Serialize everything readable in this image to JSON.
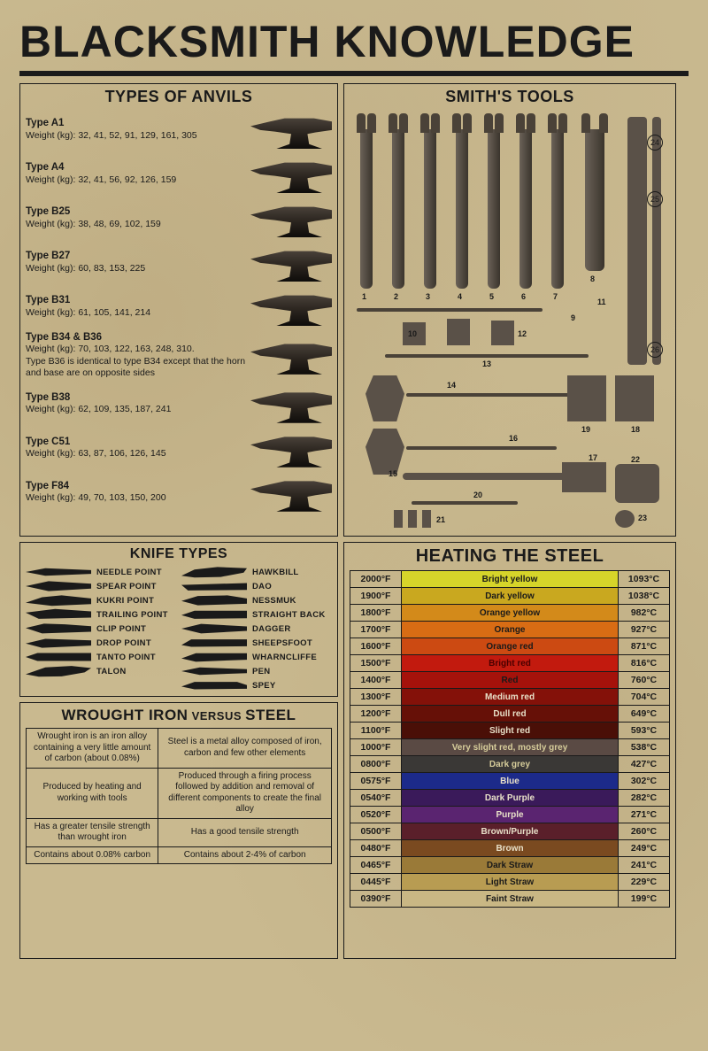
{
  "title": "BLACKSMITH KNOWLEDGE",
  "anvils": {
    "heading": "TYPES OF ANVILS",
    "items": [
      {
        "name": "Type A1",
        "weights": "Weight (kg): 32, 41, 52, 91, 129, 161, 305",
        "note": ""
      },
      {
        "name": "Type A4",
        "weights": "Weight (kg): 32, 41, 56, 92, 126, 159",
        "note": ""
      },
      {
        "name": "Type B25",
        "weights": "Weight (kg): 38, 48, 69, 102, 159",
        "note": ""
      },
      {
        "name": "Type B27",
        "weights": "Weight (kg): 60, 83, 153, 225",
        "note": ""
      },
      {
        "name": "Type B31",
        "weights": "Weight (kg): 61, 105, 141, 214",
        "note": ""
      },
      {
        "name": "Type B34 & B36",
        "weights": "Weight (kg): 70, 103, 122, 163, 248, 310.",
        "note": "Type B36 is identical to type B34 except that the horn and base are on opposite sides"
      },
      {
        "name": "Type B38",
        "weights": "Weight (kg): 62, 109, 135, 187, 241",
        "note": ""
      },
      {
        "name": "Type C51",
        "weights": "Weight (kg): 63, 87, 106, 126, 145",
        "note": ""
      },
      {
        "name": "Type F84",
        "weights": "Weight (kg): 49, 70, 103, 150, 200",
        "note": ""
      }
    ]
  },
  "tools": {
    "heading": "SMITH'S TOOLS",
    "numbers": [
      "1",
      "2",
      "3",
      "4",
      "5",
      "6",
      "7",
      "8",
      "9",
      "10",
      "11",
      "12",
      "13",
      "14",
      "15",
      "16",
      "17",
      "18",
      "19",
      "20",
      "21",
      "22",
      "23",
      "24",
      "25",
      "26"
    ]
  },
  "knives": {
    "heading": "KNIFE TYPES",
    "left": [
      {
        "label": "NEEDLE POINT",
        "clip": "polygon(0 50%, 30% 20%, 100% 35%, 100% 65%, 30% 80%)"
      },
      {
        "label": "SPEAR POINT",
        "clip": "polygon(0 50%, 35% 10%, 100% 30%, 100% 70%, 35% 90%)"
      },
      {
        "label": "KUKRI POINT",
        "clip": "polygon(0 70%, 25% 25%, 55% 10%, 100% 35%, 100% 80%, 40% 95%)"
      },
      {
        "label": "TRAILING POINT",
        "clip": "polygon(0 35%, 45% 5%, 100% 25%, 100% 75%, 20% 85%)"
      },
      {
        "label": "CLIP POINT",
        "clip": "polygon(0 45%, 28% 10%, 60% 15%, 100% 30%, 100% 75%, 25% 88%)"
      },
      {
        "label": "DROP POINT",
        "clip": "polygon(0 55%, 30% 18%, 100% 30%, 100% 72%, 25% 90%)"
      },
      {
        "label": "TANTO POINT",
        "clip": "polygon(0 50%, 18% 18%, 100% 18%, 100% 82%, 18% 82%)"
      },
      {
        "label": "TALON",
        "clip": "polygon(0 75%, 30% 20%, 70% 8%, 100% 25%, 90% 60%, 55% 92%, 20% 95%)"
      }
    ],
    "right": [
      {
        "label": "HAWKBILL",
        "clip": "polygon(0 80%, 20% 30%, 55% 10%, 100% 20%, 95% 55%, 60% 90%, 20% 95%)"
      },
      {
        "label": "DAO",
        "clip": "polygon(0 40%, 100% 25%, 100% 80%, 10% 85%)"
      },
      {
        "label": "NESSMUK",
        "clip": "polygon(0 55%, 25% 15%, 70% 10%, 100% 35%, 100% 78%, 25% 90%)"
      },
      {
        "label": "STRAIGHT BACK",
        "clip": "polygon(0 55%, 20% 20%, 100% 20%, 100% 80%, 20% 85%)"
      },
      {
        "label": "DAGGER",
        "clip": "polygon(0 50%, 30% 12%, 100% 32%, 100% 68%, 30% 88%)"
      },
      {
        "label": "SHEEPSFOOT",
        "clip": "polygon(0 68%, 15% 22%, 100% 22%, 100% 78%, 15% 82%)"
      },
      {
        "label": "WHARNCLIFFE",
        "clip": "polygon(0 62%, 22% 20%, 100% 20%, 100% 72%, 22% 88%)"
      },
      {
        "label": "PEN",
        "clip": "polygon(0 50%, 28% 20%, 100% 34%, 100% 66%, 28% 80%)"
      },
      {
        "label": "SPEY",
        "clip": "polygon(0 60%, 20% 22%, 85% 22%, 100% 48%, 100% 78%, 20% 82%)"
      }
    ]
  },
  "heating": {
    "heading": "HEATING THE STEEL",
    "rows": [
      {
        "f": "2000°F",
        "name": "Bright yellow",
        "c": "1093°C",
        "bg": "#d6d42a",
        "fg": "#1a1a1a"
      },
      {
        "f": "1900°F",
        "name": "Dark yellow",
        "c": "1038°C",
        "bg": "#c9a81f",
        "fg": "#1a1a1a"
      },
      {
        "f": "1800°F",
        "name": "Orange yellow",
        "c": "982°C",
        "bg": "#d38a1a",
        "fg": "#1a1a1a"
      },
      {
        "f": "1700°F",
        "name": "Orange",
        "c": "927°C",
        "bg": "#d86c14",
        "fg": "#1a1a1a"
      },
      {
        "f": "1600°F",
        "name": "Orange red",
        "c": "871°C",
        "bg": "#cc4a12",
        "fg": "#1a1a1a"
      },
      {
        "f": "1500°F",
        "name": "Bright red",
        "c": "816°C",
        "bg": "#c21a0e",
        "fg": "#4a0000"
      },
      {
        "f": "1400°F",
        "name": "Red",
        "c": "760°C",
        "bg": "#a5120b",
        "fg": "#1a1a1a"
      },
      {
        "f": "1300°F",
        "name": "Medium red",
        "c": "704°C",
        "bg": "#841109",
        "fg": "#e8e0c8"
      },
      {
        "f": "1200°F",
        "name": "Dull red",
        "c": "649°C",
        "bg": "#661007",
        "fg": "#e8e0c8"
      },
      {
        "f": "1100°F",
        "name": "Slight red",
        "c": "593°C",
        "bg": "#4a0f07",
        "fg": "#e8e0c8"
      },
      {
        "f": "1000°F",
        "name": "Very slight red, mostly grey",
        "c": "538°C",
        "bg": "#5a4a44",
        "fg": "#d6cc9a"
      },
      {
        "f": "0800°F",
        "name": "Dark grey",
        "c": "427°C",
        "bg": "#3a3836",
        "fg": "#d6cc9a"
      },
      {
        "f": "0575°F",
        "name": "Blue",
        "c": "302°C",
        "bg": "#1c2a8a",
        "fg": "#e8e0c8"
      },
      {
        "f": "0540°F",
        "name": "Dark Purple",
        "c": "282°C",
        "bg": "#3a1a5a",
        "fg": "#e8e0c8"
      },
      {
        "f": "0520°F",
        "name": "Purple",
        "c": "271°C",
        "bg": "#5a2470",
        "fg": "#e8e0c8"
      },
      {
        "f": "0500°F",
        "name": "Brown/Purple",
        "c": "260°C",
        "bg": "#5a1f2a",
        "fg": "#e8e0c8"
      },
      {
        "f": "0480°F",
        "name": "Brown",
        "c": "249°C",
        "bg": "#7a4a20",
        "fg": "#e8e0c8"
      },
      {
        "f": "0465°F",
        "name": "Dark Straw",
        "c": "241°C",
        "bg": "#9a7a38",
        "fg": "#1a1a1a"
      },
      {
        "f": "0445°F",
        "name": "Light Straw",
        "c": "229°C",
        "bg": "#b89c52",
        "fg": "#1a1a1a"
      },
      {
        "f": "0390°F",
        "name": "Faint Straw",
        "c": "199°C",
        "bg": "#c9b784",
        "fg": "#1a1a1a"
      }
    ]
  },
  "wrought": {
    "heading_pre": "WROUGHT IRON",
    "heading_mid": " VERSUS ",
    "heading_post": "STEEL",
    "rows": [
      [
        "Wrought iron is an iron alloy containing a very little amount of carbon (about 0.08%)",
        "Steel is a metal alloy composed of iron, carbon and few other elements"
      ],
      [
        "Produced by heating and working with tools",
        "Produced through a firing process followed by addition and removal of different components to create the final alloy"
      ],
      [
        "Has a greater tensile strength than wrought iron",
        "Has a good tensile strength"
      ],
      [
        "Contains about 0.08% carbon",
        "Contains about 2-4% of carbon"
      ]
    ]
  }
}
